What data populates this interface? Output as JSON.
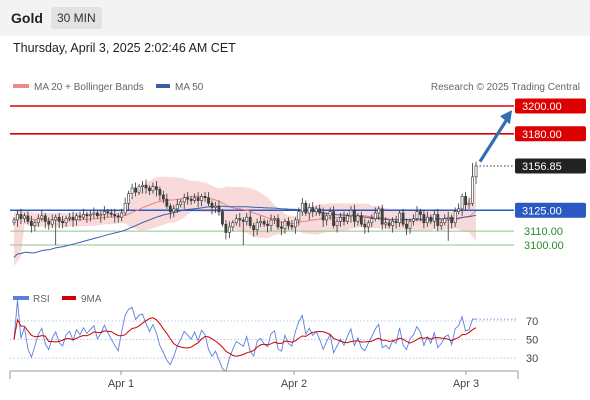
{
  "header": {
    "instrument": "Gold",
    "timeframe": "30 MIN"
  },
  "datetime": "Thursday, April 3, 2025 2:02:46 AM CET",
  "copyright": "Research © 2025 Trading Central",
  "colors": {
    "resistance": "#dd0000",
    "support": "#2a8a2a",
    "pivot": "#2b59c3",
    "up_candle": "#ffffff",
    "down_candle": "#444444",
    "bollinger_band": "#f6c6c6",
    "ma20": "#e88080",
    "ma50": "#3b5ea8",
    "rsi": "#5b7fdb",
    "rsi_ma": "#cc0000",
    "arrow": "#2f6fb2"
  },
  "chart_data": [
    {
      "type": "candlestick",
      "legend": [
        {
          "name": "MA 20 + Bollinger Bands",
          "color": "#f08a8a"
        },
        {
          "name": "MA 50",
          "color": "#3b5ea8"
        }
      ],
      "x_ticks": [
        "Apr 1",
        "Apr 2",
        "Apr 3"
      ],
      "ylim": [
        3060,
        3210
      ],
      "levels": [
        {
          "value": 3200.0,
          "label": "3200.00",
          "kind": "resistance"
        },
        {
          "value": 3180.0,
          "label": "3180.00",
          "kind": "resistance"
        },
        {
          "value": 3156.85,
          "label": "3156.85",
          "kind": "last"
        },
        {
          "value": 3125.0,
          "label": "3125.00",
          "kind": "pivot"
        },
        {
          "value": 3110.0,
          "label": "3110.00",
          "kind": "support"
        },
        {
          "value": 3100.0,
          "label": "3100.00",
          "kind": "support"
        }
      ],
      "arrow": {
        "from": 3160,
        "to": 3197
      },
      "close": [
        3118,
        3122,
        3119,
        3121,
        3117,
        3114,
        3116,
        3119,
        3121,
        3117,
        3115,
        3118,
        3120,
        3117,
        3116,
        3119,
        3120,
        3118,
        3121,
        3120,
        3122,
        3121,
        3122,
        3123,
        3121,
        3122,
        3124,
        3123,
        3122,
        3121,
        3120,
        3123,
        3130,
        3137,
        3141,
        3138,
        3142,
        3143,
        3141,
        3139,
        3142,
        3140,
        3136,
        3133,
        3128,
        3124,
        3126,
        3129,
        3131,
        3134,
        3133,
        3132,
        3134,
        3132,
        3135,
        3134,
        3130,
        3127,
        3128,
        3124,
        3115,
        3109,
        3113,
        3116,
        3119,
        3118,
        3117,
        3120,
        3114,
        3111,
        3116,
        3117,
        3115,
        3114,
        3118,
        3119,
        3113,
        3112,
        3117,
        3114,
        3113,
        3118,
        3124,
        3130,
        3123,
        3127,
        3124,
        3126,
        3123,
        3118,
        3121,
        3124,
        3114,
        3117,
        3120,
        3117,
        3121,
        3125,
        3117,
        3121,
        3115,
        3113,
        3116,
        3119,
        3123,
        3126,
        3115,
        3116,
        3114,
        3117,
        3116,
        3123,
        3115,
        3112,
        3117,
        3119,
        3124,
        3122,
        3116,
        3120,
        3117,
        3122,
        3114,
        3116,
        3119,
        3120,
        3116,
        3124,
        3126,
        3135,
        3129,
        3130,
        3149,
        3156.85
      ]
    },
    {
      "type": "line",
      "legend": [
        {
          "name": "RSI",
          "color": "#5b7fdb"
        },
        {
          "name": "9MA",
          "color": "#cc0000"
        }
      ],
      "y_ticks": [
        70,
        50,
        30
      ],
      "ylim": [
        20,
        80
      ]
    }
  ]
}
